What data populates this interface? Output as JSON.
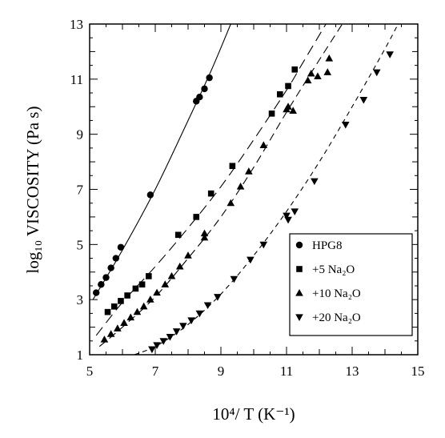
{
  "chart_data": {
    "type": "scatter",
    "xlabel": "10⁴/ T (K⁻¹)",
    "ylabel": "log₁₀ VISCOSITY (Pa s)",
    "xlim": [
      5,
      15
    ],
    "ylim": [
      1,
      13
    ],
    "xticks": [
      5,
      7,
      9,
      11,
      13,
      15
    ],
    "xtick_labels": [
      "5",
      "7",
      "9",
      "11",
      "13",
      "15"
    ],
    "yticks": [
      1,
      3,
      5,
      7,
      9,
      11,
      13
    ],
    "ytick_labels": [
      "1",
      "3",
      "5",
      "7",
      "9",
      "11",
      "13"
    ],
    "grid": false,
    "legend_position": "bottom-right",
    "series": [
      {
        "name": "HPG8",
        "marker": "circle",
        "fit_line": "solid",
        "points": [
          [
            5.2,
            3.25
          ],
          [
            5.35,
            3.55
          ],
          [
            5.5,
            3.8
          ],
          [
            5.65,
            4.15
          ],
          [
            5.8,
            4.5
          ],
          [
            5.95,
            4.9
          ],
          [
            6.85,
            6.8
          ],
          [
            8.25,
            10.2
          ],
          [
            8.35,
            10.35
          ],
          [
            8.5,
            10.65
          ],
          [
            8.65,
            11.05
          ]
        ],
        "fit_curve": [
          [
            5.1,
            3.0
          ],
          [
            6.0,
            4.8
          ],
          [
            7.0,
            7.0
          ],
          [
            8.0,
            9.5
          ],
          [
            8.7,
            11.3
          ],
          [
            9.3,
            13.0
          ]
        ]
      },
      {
        "name": "+5 Na₂O",
        "marker": "square",
        "fit_line": "dashed",
        "points": [
          [
            5.55,
            2.55
          ],
          [
            5.75,
            2.75
          ],
          [
            5.95,
            2.95
          ],
          [
            6.15,
            3.15
          ],
          [
            6.4,
            3.4
          ],
          [
            6.6,
            3.55
          ],
          [
            6.8,
            3.85
          ],
          [
            7.7,
            5.35
          ],
          [
            8.25,
            6.0
          ],
          [
            8.7,
            6.85
          ],
          [
            9.35,
            7.85
          ],
          [
            10.55,
            9.75
          ],
          [
            10.8,
            10.45
          ],
          [
            11.05,
            10.75
          ],
          [
            11.25,
            11.35
          ]
        ],
        "fit_curve": [
          [
            5.2,
            1.7
          ],
          [
            6.0,
            2.9
          ],
          [
            7.0,
            4.2
          ],
          [
            8.0,
            5.6
          ],
          [
            9.0,
            7.1
          ],
          [
            10.0,
            8.8
          ],
          [
            11.0,
            10.6
          ],
          [
            11.5,
            11.6
          ],
          [
            12.2,
            13.0
          ]
        ]
      },
      {
        "name": "+10 Na₂O",
        "marker": "triangle-up",
        "fit_line": "dashed",
        "points": [
          [
            5.45,
            1.55
          ],
          [
            5.65,
            1.75
          ],
          [
            5.85,
            1.95
          ],
          [
            6.05,
            2.15
          ],
          [
            6.25,
            2.35
          ],
          [
            6.45,
            2.55
          ],
          [
            6.65,
            2.75
          ],
          [
            6.85,
            3.0
          ],
          [
            7.05,
            3.25
          ],
          [
            7.3,
            3.55
          ],
          [
            7.5,
            3.85
          ],
          [
            7.75,
            4.2
          ],
          [
            8.0,
            4.6
          ],
          [
            8.5,
            5.25
          ],
          [
            8.5,
            5.4
          ],
          [
            9.3,
            6.5
          ],
          [
            9.6,
            7.1
          ],
          [
            9.85,
            7.65
          ],
          [
            10.3,
            8.6
          ],
          [
            11.0,
            9.9
          ],
          [
            11.05,
            10.0
          ],
          [
            11.2,
            9.85
          ],
          [
            11.65,
            10.95
          ],
          [
            11.75,
            11.2
          ],
          [
            11.95,
            11.1
          ],
          [
            12.25,
            11.25
          ],
          [
            12.3,
            11.75
          ]
        ],
        "fit_curve": [
          [
            5.3,
            1.3
          ],
          [
            6.0,
            2.0
          ],
          [
            7.0,
            3.1
          ],
          [
            8.0,
            4.5
          ],
          [
            9.0,
            6.0
          ],
          [
            10.0,
            7.8
          ],
          [
            11.0,
            9.8
          ],
          [
            12.0,
            11.7
          ],
          [
            12.7,
            13.0
          ]
        ]
      },
      {
        "name": "+20 Na₂O",
        "marker": "triangle-down",
        "fit_line": "dashed",
        "points": [
          [
            6.9,
            1.2
          ],
          [
            7.05,
            1.35
          ],
          [
            7.25,
            1.5
          ],
          [
            7.45,
            1.65
          ],
          [
            7.65,
            1.85
          ],
          [
            7.85,
            2.05
          ],
          [
            8.1,
            2.25
          ],
          [
            8.35,
            2.5
          ],
          [
            8.6,
            2.8
          ],
          [
            8.9,
            3.1
          ],
          [
            9.4,
            3.75
          ],
          [
            9.9,
            4.45
          ],
          [
            10.3,
            5.0
          ],
          [
            11.0,
            6.05
          ],
          [
            11.05,
            5.9
          ],
          [
            11.25,
            6.2
          ],
          [
            11.85,
            7.3
          ],
          [
            12.8,
            9.35
          ],
          [
            13.35,
            10.25
          ],
          [
            13.75,
            11.25
          ],
          [
            14.15,
            11.9
          ]
        ],
        "fit_curve": [
          [
            6.1,
            0.9
          ],
          [
            7.0,
            1.3
          ],
          [
            8.0,
            2.1
          ],
          [
            9.0,
            3.2
          ],
          [
            10.0,
            4.6
          ],
          [
            11.0,
            6.2
          ],
          [
            12.0,
            8.0
          ],
          [
            13.0,
            10.0
          ],
          [
            14.0,
            12.1
          ],
          [
            14.4,
            13.0
          ]
        ]
      }
    ]
  }
}
